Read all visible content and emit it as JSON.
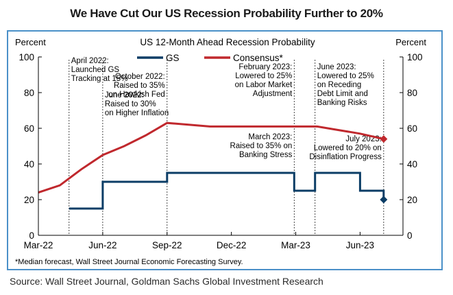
{
  "headline": "We Have Cut Our US Recession Probability Further to 20%",
  "source": "Source: Wall Street Journal, Goldman Sachs Global Investment Research",
  "colors": {
    "gs": "#0b3d66",
    "consensus": "#c0282d",
    "frame": "#4a90c8"
  },
  "chart_data": {
    "type": "line",
    "title": "US 12-Month Ahead Recession Probability",
    "ylabel_left": "Percent",
    "ylabel_right": "Percent",
    "ylim": [
      0,
      100
    ],
    "yticks": [
      0,
      20,
      40,
      60,
      80,
      100
    ],
    "xlim": [
      0,
      17
    ],
    "xticks": [
      {
        "label": "Mar-22",
        "x": 0
      },
      {
        "label": "Jun-22",
        "x": 3
      },
      {
        "label": "Sep-22",
        "x": 6
      },
      {
        "label": "Dec-22",
        "x": 9
      },
      {
        "label": "Mar-23",
        "x": 12
      },
      {
        "label": "Jun-23",
        "x": 15
      }
    ],
    "series": [
      {
        "name": "GS",
        "style": "step",
        "points": [
          [
            1.43,
            15
          ],
          [
            3.0,
            15
          ],
          [
            3.0,
            30
          ],
          [
            6.0,
            30
          ],
          [
            6.0,
            35
          ],
          [
            11.93,
            35
          ],
          [
            11.93,
            25
          ],
          [
            12.9,
            25
          ],
          [
            12.9,
            35
          ],
          [
            15.0,
            35
          ],
          [
            15.0,
            25
          ],
          [
            16.1,
            25
          ],
          [
            16.1,
            20
          ]
        ],
        "end_marker": {
          "x": 16.1,
          "y": 20
        }
      },
      {
        "name": "Consensus*",
        "style": "line",
        "points": [
          [
            0,
            24
          ],
          [
            1,
            28
          ],
          [
            2,
            37
          ],
          [
            3,
            45
          ],
          [
            4,
            50
          ],
          [
            5,
            56
          ],
          [
            6,
            63
          ],
          [
            7,
            62
          ],
          [
            8,
            61
          ],
          [
            9,
            61
          ],
          [
            10,
            61
          ],
          [
            11,
            61
          ],
          [
            12,
            61
          ],
          [
            13,
            61
          ],
          [
            14,
            59
          ],
          [
            15,
            57
          ],
          [
            16.1,
            54
          ]
        ],
        "end_marker": {
          "x": 16.1,
          "y": 54
        }
      }
    ],
    "annotations": [
      {
        "x": 1.43,
        "lines": [
          "April 2022:",
          "Launched GS",
          "Tracking at 15%"
        ],
        "anchor": "start"
      },
      {
        "x": 3.0,
        "lines": [
          "June 2022:",
          "Raised to 30%",
          "on Higher Inflation"
        ],
        "anchor": "start"
      },
      {
        "x": 6.0,
        "lines": [
          "October 2022:",
          "Raised to 35%",
          "on Hawkish Fed"
        ],
        "anchor": "end"
      },
      {
        "x": 11.93,
        "lines": [
          "February 2023:",
          "Lowered to 25%",
          "on Labor Market",
          "Adjustment"
        ],
        "anchor": "end"
      },
      {
        "x": 11.93,
        "lines": [
          "March 2023:",
          "Raised to 35% on",
          "Banking Stress"
        ],
        "anchor": "end"
      },
      {
        "x": 12.9,
        "lines": [
          "June 2023:",
          "Lowered to 25%",
          "on Receding",
          "Debt Limit  and",
          "Banking Risks"
        ],
        "anchor": "start"
      },
      {
        "x": 16.1,
        "lines": [
          "July 2023:",
          "Lowered to 20% on",
          "Disinflation Progress"
        ],
        "anchor": "end"
      }
    ],
    "footnote": "*Median forecast, Wall Street Journal Economic Forecasting Survey."
  }
}
